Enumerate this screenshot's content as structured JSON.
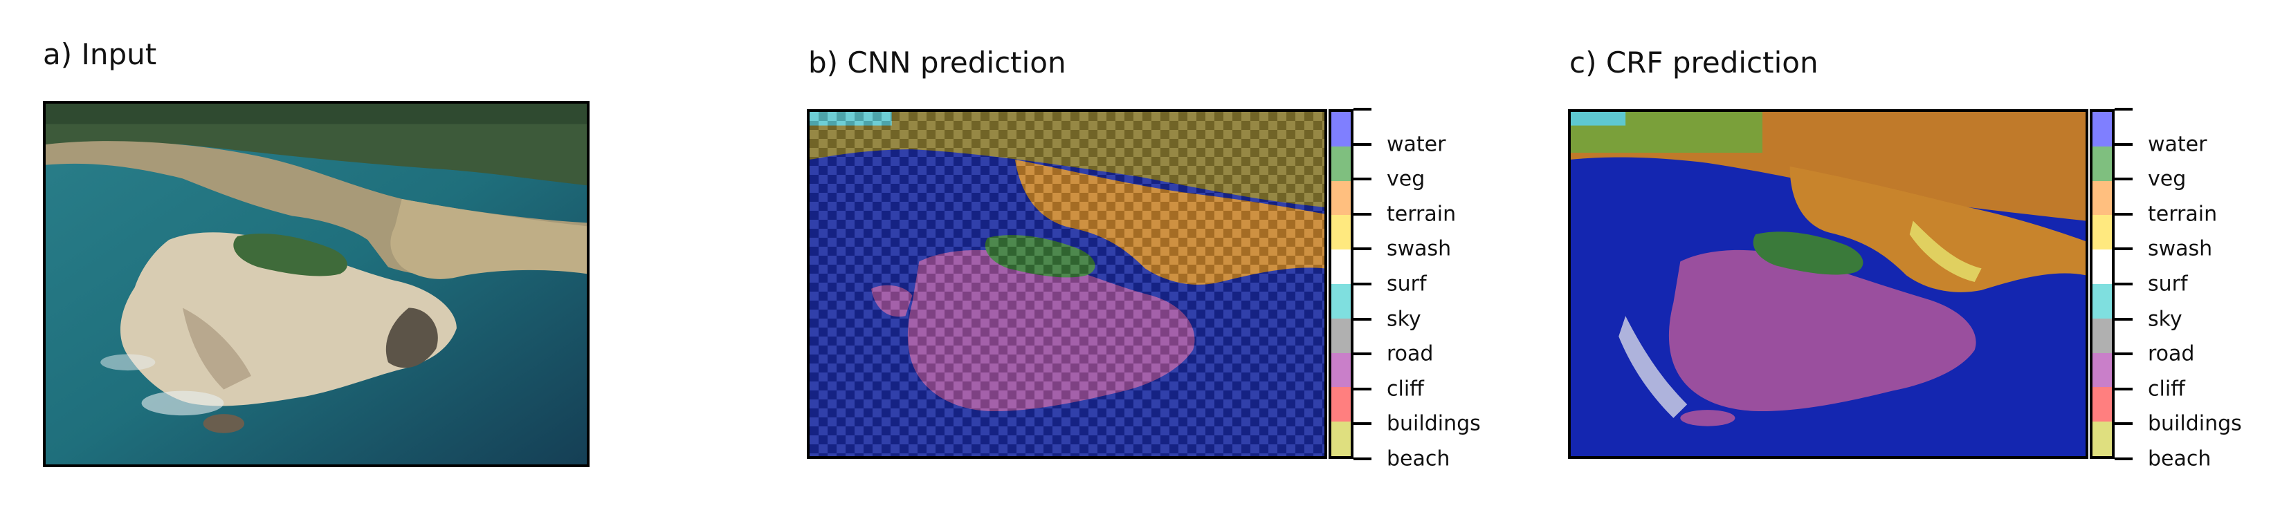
{
  "panels": {
    "a": {
      "title": "a) Input"
    },
    "b": {
      "title": "b) CNN prediction"
    },
    "c": {
      "title": "c) CRF prediction"
    }
  },
  "colorbar": {
    "classes": [
      {
        "label": "water",
        "color": "#7f7fff"
      },
      {
        "label": "veg",
        "color": "#7fbf7f"
      },
      {
        "label": "terrain",
        "color": "#ffbf7f"
      },
      {
        "label": "swash",
        "color": "#ffe97f"
      },
      {
        "label": "surf",
        "color": "#ffffff"
      },
      {
        "label": "sky",
        "color": "#7fdfdf"
      },
      {
        "label": "road",
        "color": "#b0b0b0"
      },
      {
        "label": "cliff",
        "color": "#c97fc9"
      },
      {
        "label": "buildings",
        "color": "#ff7f7f"
      },
      {
        "label": "beach",
        "color": "#dfdf7f"
      }
    ]
  }
}
